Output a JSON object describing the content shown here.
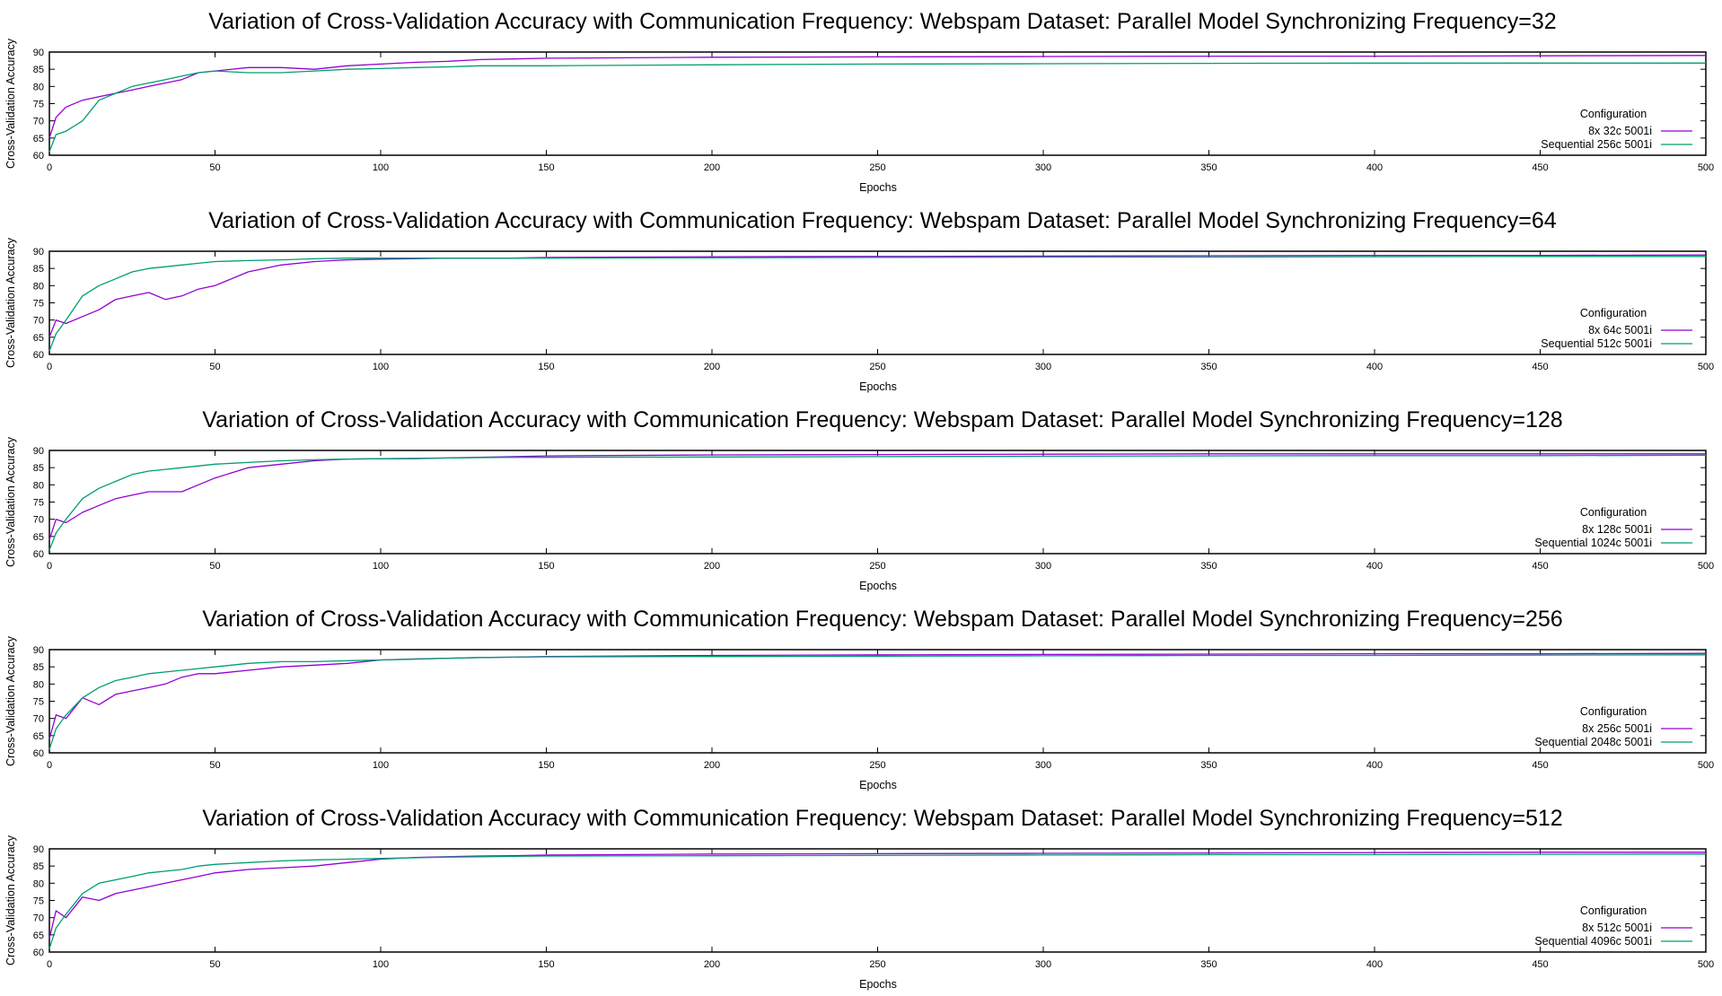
{
  "chart_data": [
    {
      "type": "line",
      "title": "Variation of Cross-Validation Accuracy with Communication Frequency: Webspam Dataset: Parallel Model Synchronizing Frequency=32",
      "xlabel": "Epochs",
      "ylabel": "Cross-Validation Accuracy",
      "xlim": [
        0,
        500
      ],
      "ylim": [
        60,
        90
      ],
      "xticks": [
        "0",
        "50",
        "100",
        "150",
        "200",
        "250",
        "300",
        "350",
        "400",
        "450",
        "500"
      ],
      "yticks": [
        "60",
        "65",
        "70",
        "75",
        "80",
        "85",
        "90"
      ],
      "grid": false,
      "legend_title": "Configuration",
      "legend_placement": "bottom-right",
      "series": [
        {
          "name": "8x 32c 5001i",
          "color": "#9400d3",
          "x": [
            0,
            2,
            5,
            10,
            15,
            20,
            25,
            30,
            35,
            40,
            45,
            50,
            60,
            70,
            80,
            90,
            100,
            110,
            120,
            130,
            140,
            150,
            200,
            250,
            300,
            350,
            400,
            450,
            500
          ],
          "values": [
            65,
            71,
            74,
            76,
            77,
            78,
            79,
            80,
            81,
            82,
            84,
            84.5,
            85.5,
            85.5,
            85,
            86,
            86.5,
            87,
            87.3,
            87.8,
            88,
            88.2,
            88.5,
            88.6,
            88.7,
            88.8,
            88.8,
            88.9,
            89
          ]
        },
        {
          "name": "Sequential 256c 5001i",
          "color": "#009e73",
          "x": [
            0,
            2,
            5,
            10,
            15,
            20,
            25,
            30,
            35,
            40,
            45,
            50,
            60,
            70,
            80,
            90,
            100,
            110,
            120,
            130,
            140,
            150,
            200,
            250,
            300,
            350,
            400,
            450,
            500
          ],
          "values": [
            61,
            66,
            67,
            70,
            76,
            78,
            80,
            81,
            82,
            83,
            84,
            84.5,
            84,
            84,
            84.5,
            85,
            85.2,
            85.5,
            85.7,
            86,
            86,
            86,
            86.3,
            86.5,
            86.6,
            86.7,
            86.8,
            86.8,
            86.8
          ]
        }
      ]
    },
    {
      "type": "line",
      "title": "Variation of Cross-Validation Accuracy with Communication Frequency: Webspam Dataset: Parallel Model Synchronizing Frequency=64",
      "xlabel": "Epochs",
      "ylabel": "Cross-Validation Accuracy",
      "xlim": [
        0,
        500
      ],
      "ylim": [
        60,
        90
      ],
      "xticks": [
        "0",
        "50",
        "100",
        "150",
        "200",
        "250",
        "300",
        "350",
        "400",
        "450",
        "500"
      ],
      "yticks": [
        "60",
        "65",
        "70",
        "75",
        "80",
        "85",
        "90"
      ],
      "grid": false,
      "legend_title": "Configuration",
      "legend_placement": "bottom-right",
      "series": [
        {
          "name": "8x 64c 5001i",
          "color": "#9400d3",
          "x": [
            0,
            2,
            5,
            10,
            15,
            20,
            25,
            30,
            35,
            40,
            45,
            50,
            60,
            70,
            80,
            90,
            100,
            110,
            120,
            130,
            140,
            150,
            200,
            250,
            300,
            350,
            400,
            450,
            500
          ],
          "values": [
            65,
            70,
            69,
            71,
            73,
            76,
            77,
            78,
            76,
            77,
            79,
            80,
            84,
            86,
            87,
            87.5,
            87.7,
            87.8,
            88,
            88,
            88,
            88.2,
            88.4,
            88.5,
            88.6,
            88.7,
            88.8,
            88.8,
            88.9
          ]
        },
        {
          "name": "Sequential 512c 5001i",
          "color": "#009e73",
          "x": [
            0,
            2,
            5,
            10,
            15,
            20,
            25,
            30,
            35,
            40,
            45,
            50,
            60,
            70,
            80,
            90,
            100,
            110,
            120,
            130,
            140,
            150,
            200,
            250,
            300,
            350,
            400,
            450,
            500
          ],
          "values": [
            61,
            66,
            70,
            77,
            80,
            82,
            84,
            85,
            85.5,
            86,
            86.5,
            87,
            87.3,
            87.5,
            87.8,
            88,
            88,
            88,
            88,
            88,
            88,
            88,
            88.1,
            88.2,
            88.3,
            88.3,
            88.4,
            88.5,
            88.5
          ]
        }
      ]
    },
    {
      "type": "line",
      "title": "Variation of Cross-Validation Accuracy with Communication Frequency: Webspam Dataset: Parallel Model Synchronizing Frequency=128",
      "xlabel": "Epochs",
      "ylabel": "Cross-Validation Accuracy",
      "xlim": [
        0,
        500
      ],
      "ylim": [
        60,
        90
      ],
      "xticks": [
        "0",
        "50",
        "100",
        "150",
        "200",
        "250",
        "300",
        "350",
        "400",
        "450",
        "500"
      ],
      "yticks": [
        "60",
        "65",
        "70",
        "75",
        "80",
        "85",
        "90"
      ],
      "grid": false,
      "legend_title": "Configuration",
      "legend_placement": "bottom-right",
      "series": [
        {
          "name": "8x 128c 5001i",
          "color": "#9400d3",
          "x": [
            0,
            2,
            5,
            10,
            15,
            20,
            25,
            30,
            35,
            40,
            45,
            50,
            60,
            70,
            80,
            90,
            100,
            110,
            120,
            130,
            140,
            150,
            200,
            250,
            300,
            350,
            400,
            450,
            500
          ],
          "values": [
            64,
            70,
            69,
            72,
            74,
            76,
            77,
            78,
            78,
            78,
            80,
            82,
            85,
            86,
            87,
            87.5,
            87.6,
            87.6,
            87.8,
            88,
            88.2,
            88.4,
            88.7,
            88.8,
            88.9,
            89,
            89,
            89,
            89
          ]
        },
        {
          "name": "Sequential 1024c 5001i",
          "color": "#009e73",
          "x": [
            0,
            2,
            5,
            10,
            15,
            20,
            25,
            30,
            35,
            40,
            45,
            50,
            60,
            70,
            80,
            90,
            100,
            110,
            120,
            130,
            140,
            150,
            200,
            250,
            300,
            350,
            400,
            450,
            500
          ],
          "values": [
            61,
            66,
            70,
            76,
            79,
            81,
            83,
            84,
            84.5,
            85,
            85.5,
            86,
            86.5,
            87,
            87.3,
            87.5,
            87.6,
            87.7,
            87.8,
            87.9,
            88,
            88,
            88.1,
            88.2,
            88.3,
            88.4,
            88.5,
            88.5,
            88.6
          ]
        }
      ]
    },
    {
      "type": "line",
      "title": "Variation of Cross-Validation Accuracy with Communication Frequency: Webspam Dataset: Parallel Model Synchronizing Frequency=256",
      "xlabel": "Epochs",
      "ylabel": "Cross-Validation Accuracy",
      "xlim": [
        0,
        500
      ],
      "ylim": [
        60,
        90
      ],
      "xticks": [
        "0",
        "50",
        "100",
        "150",
        "200",
        "250",
        "300",
        "350",
        "400",
        "450",
        "500"
      ],
      "yticks": [
        "60",
        "65",
        "70",
        "75",
        "80",
        "85",
        "90"
      ],
      "grid": false,
      "legend_title": "Configuration",
      "legend_placement": "bottom-right",
      "series": [
        {
          "name": "8x 256c 5001i",
          "color": "#9400d3",
          "x": [
            0,
            2,
            5,
            10,
            15,
            20,
            25,
            30,
            35,
            40,
            45,
            50,
            60,
            70,
            80,
            90,
            100,
            110,
            120,
            130,
            140,
            150,
            200,
            250,
            300,
            350,
            400,
            450,
            500
          ],
          "values": [
            64,
            71,
            70,
            76,
            74,
            77,
            78,
            79,
            80,
            82,
            83,
            83,
            84,
            85,
            85.5,
            86,
            87,
            87.3,
            87.5,
            87.7,
            87.8,
            88,
            88.3,
            88.5,
            88.6,
            88.7,
            88.8,
            88.8,
            88.9
          ]
        },
        {
          "name": "Sequential 2048c 5001i",
          "color": "#009e73",
          "x": [
            0,
            2,
            5,
            10,
            15,
            20,
            25,
            30,
            35,
            40,
            45,
            50,
            60,
            70,
            80,
            90,
            100,
            110,
            120,
            130,
            140,
            150,
            200,
            250,
            300,
            350,
            400,
            450,
            500
          ],
          "values": [
            61,
            67,
            71,
            76,
            79,
            81,
            82,
            83,
            83.5,
            84,
            84.5,
            85,
            86,
            86.5,
            86.5,
            86.8,
            87,
            87.2,
            87.5,
            87.7,
            87.8,
            87.9,
            88,
            88.1,
            88.2,
            88.3,
            88.3,
            88.4,
            88.5
          ]
        }
      ]
    },
    {
      "type": "line",
      "title": "Variation of Cross-Validation Accuracy with Communication Frequency: Webspam Dataset: Parallel Model Synchronizing Frequency=512",
      "xlabel": "Epochs",
      "ylabel": "Cross-Validation Accuracy",
      "xlim": [
        0,
        500
      ],
      "ylim": [
        60,
        90
      ],
      "xticks": [
        "0",
        "50",
        "100",
        "150",
        "200",
        "250",
        "300",
        "350",
        "400",
        "450",
        "500"
      ],
      "yticks": [
        "60",
        "65",
        "70",
        "75",
        "80",
        "85",
        "90"
      ],
      "grid": false,
      "legend_title": "Configuration",
      "legend_placement": "bottom-right",
      "series": [
        {
          "name": "8x 512c 5001i",
          "color": "#9400d3",
          "x": [
            0,
            2,
            5,
            10,
            15,
            20,
            25,
            30,
            35,
            40,
            45,
            50,
            60,
            70,
            80,
            90,
            100,
            110,
            120,
            130,
            140,
            150,
            200,
            250,
            300,
            350,
            400,
            450,
            500
          ],
          "values": [
            64,
            72,
            70,
            76,
            75,
            77,
            78,
            79,
            80,
            81,
            82,
            83,
            84,
            84.5,
            85,
            86,
            87,
            87.5,
            87.7,
            87.9,
            88,
            88.2,
            88.5,
            88.6,
            88.7,
            88.8,
            88.9,
            89,
            89
          ]
        },
        {
          "name": "Sequential 4096c 5001i",
          "color": "#009e73",
          "x": [
            0,
            2,
            5,
            10,
            15,
            20,
            25,
            30,
            35,
            40,
            45,
            50,
            60,
            70,
            80,
            90,
            100,
            110,
            120,
            130,
            140,
            150,
            200,
            250,
            300,
            350,
            400,
            450,
            500
          ],
          "values": [
            61,
            67,
            71,
            77,
            80,
            81,
            82,
            83,
            83.5,
            84,
            85,
            85.5,
            86,
            86.5,
            86.8,
            87,
            87.2,
            87.4,
            87.6,
            87.7,
            87.8,
            87.9,
            88,
            88.1,
            88.2,
            88.3,
            88.3,
            88.4,
            88.5
          ]
        }
      ]
    }
  ]
}
